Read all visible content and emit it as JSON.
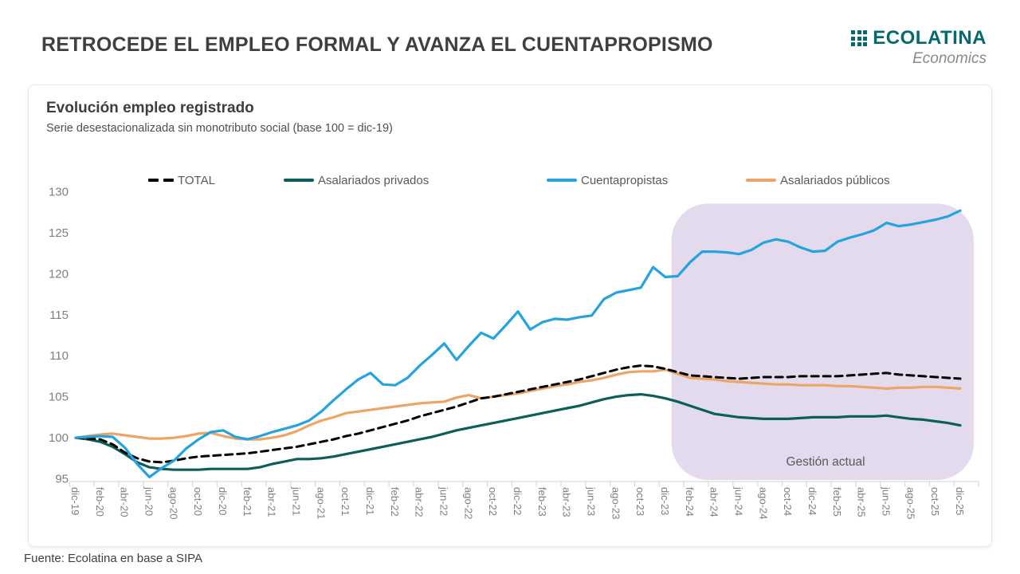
{
  "header": {
    "title": "RETROCEDE EL EMPLEO FORMAL Y AVANZA EL CUENTAPROPISMO",
    "logo": {
      "brand": "ECOLATINA",
      "tagline": "Economics"
    }
  },
  "footer": {
    "source": "Fuente: Ecolatina en base a SIPA"
  },
  "colors": {
    "brand_teal": "#046a6c",
    "annotation_fill": "#e4daee",
    "axis_line": "#d9d9d9",
    "axis_text": "#7f7f7f",
    "legend_text": "#595959"
  },
  "chart_data": {
    "type": "line",
    "title": "Evolución empleo registrado",
    "subtitle": "Serie desestacionalizada sin monotributo social (base 100 = dic-19)",
    "x_description": "monthly observations, dic-19 through dic-25 (73 points), labels every 2 months",
    "x_tick_labels": [
      "dic-19",
      "feb-20",
      "abr-20",
      "jun-20",
      "ago-20",
      "oct-20",
      "dic-20",
      "feb-21",
      "abr-21",
      "jun-21",
      "ago-21",
      "oct-21",
      "dic-21",
      "feb-22",
      "abr-22",
      "jun-22",
      "ago-22",
      "oct-22",
      "dic-22",
      "feb-23",
      "abr-23",
      "jun-23",
      "ago-23",
      "oct-23",
      "dic-23",
      "feb-24",
      "abr-24",
      "jun-24",
      "ago-24",
      "oct-24",
      "dic-24",
      "feb-25",
      "abr-25",
      "jun-25",
      "ago-25",
      "oct-25",
      "dic-25"
    ],
    "ylim": [
      95,
      130
    ],
    "y_ticks": [
      95,
      100,
      105,
      110,
      115,
      120,
      125,
      130
    ],
    "grid": false,
    "legend_position": "top",
    "annotation": {
      "label": "Gestión actual",
      "start_month_index": 48.5,
      "note": "shaded band from ~dic-23 to dic-25"
    },
    "series": [
      {
        "name": "TOTAL",
        "color": "#000000",
        "style": "dashed",
        "values": [
          100,
          99.9,
          99.8,
          99.2,
          98.2,
          97.5,
          97.1,
          97.0,
          97.2,
          97.5,
          97.7,
          97.8,
          97.9,
          98.0,
          98.1,
          98.3,
          98.5,
          98.7,
          98.9,
          99.2,
          99.5,
          99.8,
          100.2,
          100.5,
          100.9,
          101.3,
          101.7,
          102.1,
          102.6,
          103.0,
          103.4,
          103.8,
          104.3,
          104.8,
          105.0,
          105.3,
          105.6,
          105.9,
          106.2,
          106.5,
          106.8,
          107.1,
          107.5,
          107.9,
          108.3,
          108.6,
          108.8,
          108.7,
          108.4,
          108.0,
          107.6,
          107.5,
          107.4,
          107.3,
          107.2,
          107.3,
          107.4,
          107.4,
          107.4,
          107.5,
          107.5,
          107.5,
          107.5,
          107.6,
          107.7,
          107.8,
          107.9,
          107.7,
          107.6,
          107.5,
          107.4,
          107.3,
          107.2
        ]
      },
      {
        "name": "Asalariados privados",
        "color": "#0b5f58",
        "style": "solid",
        "values": [
          100,
          99.8,
          99.5,
          98.9,
          98.0,
          97.0,
          96.4,
          96.2,
          96.1,
          96.1,
          96.1,
          96.2,
          96.2,
          96.2,
          96.2,
          96.4,
          96.8,
          97.1,
          97.4,
          97.4,
          97.5,
          97.7,
          98.0,
          98.3,
          98.6,
          98.9,
          99.2,
          99.5,
          99.8,
          100.1,
          100.5,
          100.9,
          101.2,
          101.5,
          101.8,
          102.1,
          102.4,
          102.7,
          103.0,
          103.3,
          103.6,
          103.9,
          104.3,
          104.7,
          105.0,
          105.2,
          105.3,
          105.1,
          104.8,
          104.4,
          103.9,
          103.4,
          102.9,
          102.7,
          102.5,
          102.4,
          102.3,
          102.3,
          102.3,
          102.4,
          102.5,
          102.5,
          102.5,
          102.6,
          102.6,
          102.6,
          102.7,
          102.5,
          102.3,
          102.2,
          102.0,
          101.8,
          101.5
        ]
      },
      {
        "name": "Cuentapropistas",
        "color": "#24a3df",
        "style": "solid",
        "values": [
          100,
          100.1,
          100.2,
          100.1,
          98.8,
          96.8,
          95.2,
          96.3,
          97.2,
          98.7,
          99.8,
          100.7,
          100.9,
          100.1,
          99.8,
          100.2,
          100.7,
          101.1,
          101.5,
          102.1,
          103.2,
          104.6,
          105.9,
          107.1,
          107.9,
          106.5,
          106.4,
          107.3,
          108.8,
          110.1,
          111.5,
          109.5,
          111.2,
          112.8,
          112.1,
          113.7,
          115.4,
          113.2,
          114.1,
          114.5,
          114.4,
          114.7,
          114.9,
          116.9,
          117.7,
          118.0,
          118.3,
          120.8,
          119.6,
          119.7,
          121.4,
          122.7,
          122.7,
          122.6,
          122.4,
          122.9,
          123.8,
          124.2,
          123.9,
          123.2,
          122.7,
          122.8,
          123.9,
          124.4,
          124.8,
          125.3,
          126.2,
          125.8,
          126.0,
          126.3,
          126.6,
          127.0,
          127.7
        ]
      },
      {
        "name": "Asalariados públicos",
        "color": "#eda567",
        "style": "solid",
        "values": [
          100,
          100.2,
          100.4,
          100.5,
          100.3,
          100.1,
          99.9,
          99.9,
          100.0,
          100.2,
          100.5,
          100.6,
          100.2,
          99.9,
          99.8,
          99.8,
          100.0,
          100.3,
          100.8,
          101.5,
          102.1,
          102.5,
          103.0,
          103.2,
          103.4,
          103.6,
          103.8,
          104.0,
          104.2,
          104.3,
          104.4,
          104.9,
          105.2,
          104.8,
          105.0,
          105.2,
          105.4,
          105.7,
          106.0,
          106.3,
          106.5,
          106.8,
          107.0,
          107.3,
          107.7,
          108.0,
          108.1,
          108.1,
          108.3,
          107.8,
          107.3,
          107.2,
          107.1,
          106.9,
          106.8,
          106.7,
          106.6,
          106.5,
          106.5,
          106.4,
          106.4,
          106.4,
          106.3,
          106.3,
          106.2,
          106.1,
          106.0,
          106.1,
          106.1,
          106.2,
          106.2,
          106.1,
          106.0
        ]
      }
    ]
  }
}
